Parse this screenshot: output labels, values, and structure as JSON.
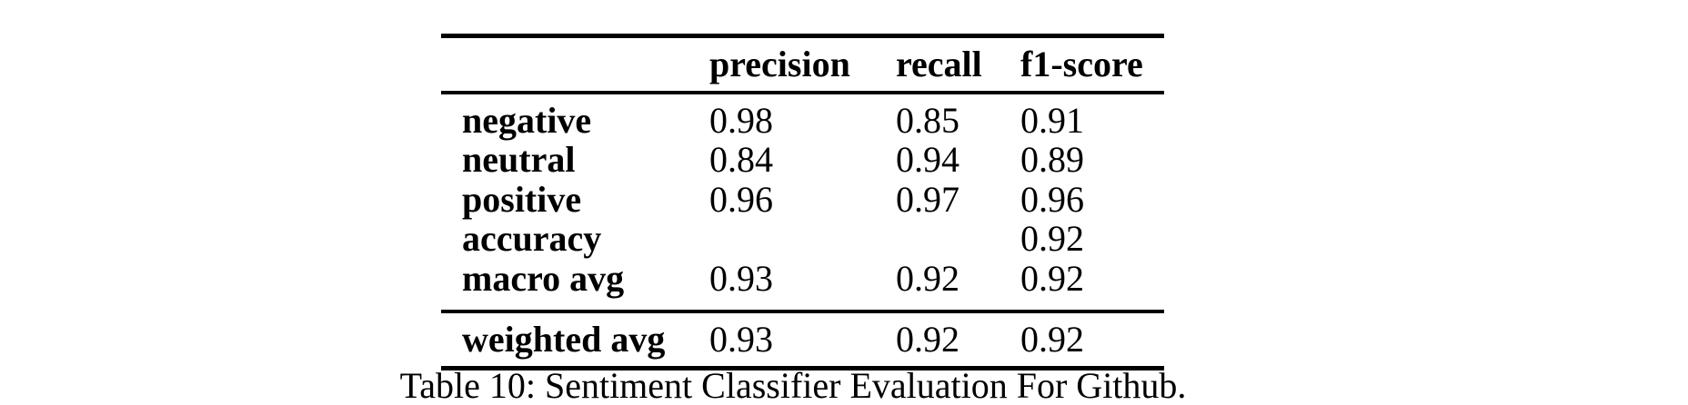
{
  "colors": {
    "background": "#ffffff",
    "text": "#000000",
    "rule": "#000000"
  },
  "table": {
    "header": {
      "corner": "",
      "columns": [
        "precision",
        "recall",
        "f1-score"
      ]
    },
    "rows": [
      {
        "label": "negative",
        "precision": "0.98",
        "recall": "0.85",
        "f1": "0.91"
      },
      {
        "label": "neutral",
        "precision": "0.84",
        "recall": "0.94",
        "f1": "0.89"
      },
      {
        "label": "positive",
        "precision": "0.96",
        "recall": "0.97",
        "f1": "0.96"
      },
      {
        "label": "accuracy",
        "precision": "",
        "recall": "",
        "f1": "0.92"
      },
      {
        "label": "macro avg",
        "precision": "0.93",
        "recall": "0.92",
        "f1": "0.92"
      }
    ],
    "footer": {
      "label": "weighted avg",
      "precision": "0.93",
      "recall": "0.92",
      "f1": "0.92"
    }
  },
  "caption": "Table 10: Sentiment Classifier Evaluation For Github.",
  "chart_data": {
    "type": "table",
    "title": "Table 10: Sentiment Classifier Evaluation For Github.",
    "columns": [
      "",
      "precision",
      "recall",
      "f1-score"
    ],
    "rows": [
      [
        "negative",
        0.98,
        0.85,
        0.91
      ],
      [
        "neutral",
        0.84,
        0.94,
        0.89
      ],
      [
        "positive",
        0.96,
        0.97,
        0.96
      ],
      [
        "accuracy",
        null,
        null,
        0.92
      ],
      [
        "macro avg",
        0.93,
        0.92,
        0.92
      ],
      [
        "weighted avg",
        0.93,
        0.92,
        0.92
      ]
    ]
  }
}
